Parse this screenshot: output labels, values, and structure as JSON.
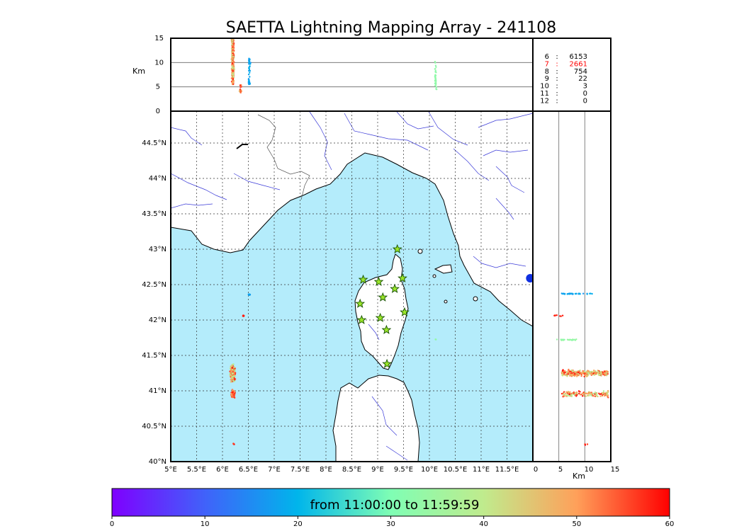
{
  "title": "SAETTA Lightning Mapping Array - 241108",
  "colorbar": {
    "label": "from 11:00:00 to 11:59:59",
    "min": 0,
    "max": 60,
    "ticks": [
      "0",
      "10",
      "20",
      "30",
      "40",
      "50",
      "60"
    ]
  },
  "colors": {
    "sea": "#b4ecfb",
    "land": "#ffffff",
    "coast": "#000000",
    "rivers": "#3b3bd8",
    "borders": "#555555",
    "station_fill": "#9be52a",
    "station_edge": "#155000",
    "highlight_row": "#ff0000"
  },
  "chart_data": [
    {
      "type": "scatter",
      "panel": "altitude-vs-longitude",
      "ylabel": "Km",
      "ylim": [
        0,
        15
      ],
      "yticks": [
        "0",
        "5",
        "10",
        "15"
      ],
      "gridlines_y": [
        5,
        10
      ],
      "clusters": [
        {
          "lon": 6.2,
          "z_min": 5.5,
          "z_max": 15,
          "time_range": [
            38,
            60
          ],
          "n": 420
        },
        {
          "lon": 6.35,
          "z_min": 3.8,
          "z_max": 5.8,
          "time_range": [
            45,
            60
          ],
          "n": 20
        },
        {
          "lon": 6.52,
          "z_min": 5.5,
          "z_max": 11,
          "time_range": [
            16,
            20
          ],
          "n": 45
        },
        {
          "lon": 10.12,
          "z_min": 4.2,
          "z_max": 10.2,
          "time_range": [
            32,
            34
          ],
          "n": 35
        }
      ]
    },
    {
      "type": "scatter",
      "panel": "plan-view-map",
      "xlim": [
        5,
        12
      ],
      "ylim": [
        40,
        44.95
      ],
      "xticks": [
        "5°E",
        "5.5°E",
        "6°E",
        "6.5°E",
        "7°E",
        "7.5°E",
        "8°E",
        "8.5°E",
        "9°E",
        "9.5°E",
        "10°E",
        "10.5°E",
        "11°E",
        "11.5°E"
      ],
      "yticks": [
        "40°N",
        "40.5°N",
        "41°N",
        "41.5°N",
        "42°N",
        "42.5°N",
        "43°N",
        "43.5°N",
        "44°N",
        "44.5°N"
      ],
      "grid": "dotted",
      "clusters": [
        {
          "lon": 6.2,
          "lat": 41.25,
          "lon_spread": 0.06,
          "lat_spread": 0.15,
          "time_range": [
            35,
            60
          ],
          "n": 280
        },
        {
          "lon": 6.2,
          "lat": 40.96,
          "lon_spread": 0.05,
          "lat_spread": 0.07,
          "time_range": [
            48,
            60
          ],
          "n": 120
        },
        {
          "lon": 6.52,
          "lat": 42.36,
          "lon_spread": 0.03,
          "lat_spread": 0.01,
          "time_range": [
            16,
            20
          ],
          "n": 10
        },
        {
          "lon": 6.4,
          "lat": 42.06,
          "lon_spread": 0.03,
          "lat_spread": 0.01,
          "time_range": [
            55,
            60
          ],
          "n": 6
        },
        {
          "lon": 6.22,
          "lat": 40.25,
          "lon_spread": 0.02,
          "lat_spread": 0.01,
          "time_range": [
            55,
            60
          ],
          "n": 3
        },
        {
          "lon": 10.12,
          "lat": 41.73,
          "lon_spread": 0.01,
          "lat_spread": 0.01,
          "time_range": [
            32,
            34
          ],
          "n": 2
        }
      ],
      "stations": [
        {
          "lon": 9.38,
          "lat": 43.0
        },
        {
          "lon": 8.72,
          "lat": 42.57
        },
        {
          "lon": 9.02,
          "lat": 42.54
        },
        {
          "lon": 9.48,
          "lat": 42.59
        },
        {
          "lon": 9.33,
          "lat": 42.44
        },
        {
          "lon": 9.1,
          "lat": 42.32
        },
        {
          "lon": 8.66,
          "lat": 42.23
        },
        {
          "lon": 9.52,
          "lat": 42.11
        },
        {
          "lon": 8.69,
          "lat": 42.0
        },
        {
          "lon": 9.05,
          "lat": 42.03
        },
        {
          "lon": 9.17,
          "lat": 41.86
        },
        {
          "lon": 9.18,
          "lat": 41.38
        }
      ],
      "marker_blue": {
        "lon": 11.95,
        "lat": 42.59
      }
    },
    {
      "type": "scatter",
      "panel": "altitude-vs-latitude",
      "xlabel": "Km",
      "xlim": [
        0,
        15
      ],
      "xticks": [
        "0",
        "5",
        "10",
        "15"
      ],
      "gridlines_x": [
        5,
        10
      ],
      "clusters": [
        {
          "lat": 42.37,
          "z_min": 5.5,
          "z_max": 11.5,
          "time_range": [
            16,
            20
          ],
          "n": 40
        },
        {
          "lat": 42.06,
          "z_min": 3.8,
          "z_max": 5.8,
          "time_range": [
            55,
            60
          ],
          "n": 8
        },
        {
          "lat": 41.72,
          "z_min": 4.5,
          "z_max": 8.5,
          "time_range": [
            32,
            35
          ],
          "n": 25
        },
        {
          "lat": 41.25,
          "z_min": 5.5,
          "z_max": 14.5,
          "time_range": [
            38,
            60
          ],
          "n": 300
        },
        {
          "lat": 40.95,
          "z_min": 5.5,
          "z_max": 14.5,
          "time_range": [
            35,
            60
          ],
          "n": 150
        },
        {
          "lat": 40.24,
          "z_min": 9.5,
          "z_max": 10.8,
          "time_range": [
            55,
            60
          ],
          "n": 3
        }
      ]
    },
    {
      "type": "table",
      "panel": "station-count-histogram",
      "rows": [
        {
          "label": "6",
          "sep": ":",
          "count": "6153",
          "highlight": false
        },
        {
          "label": "7",
          "sep": ":",
          "count": "2661",
          "highlight": true
        },
        {
          "label": "8",
          "sep": ":",
          "count": "754",
          "highlight": false
        },
        {
          "label": "9",
          "sep": ":",
          "count": "22",
          "highlight": false
        },
        {
          "label": "10",
          "sep": ":",
          "count": "3",
          "highlight": false
        },
        {
          "label": "11",
          "sep": ":",
          "count": "0",
          "highlight": false
        },
        {
          "label": "12",
          "sep": ":",
          "count": "0",
          "highlight": false
        }
      ]
    }
  ]
}
